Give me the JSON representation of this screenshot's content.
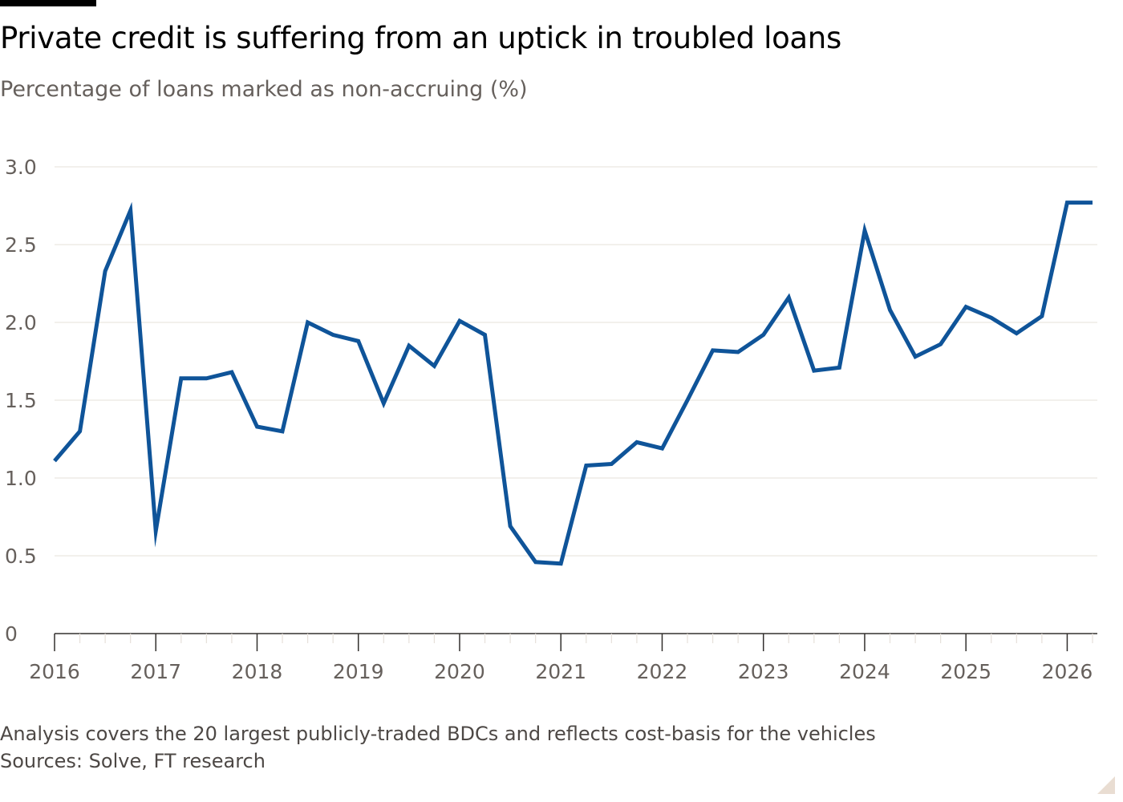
{
  "header": {
    "title": "Private credit is suffering from an uptick in troubled loans",
    "subtitle": "Percentage of loans marked as non-accruing (%)"
  },
  "footer": {
    "note": "Analysis covers the 20 largest publicly-traded BDCs and reflects cost-basis for the vehicles",
    "source": "Sources: Solve, FT research"
  },
  "colors": {
    "line": "#0f5499",
    "grid": "#e6e0da",
    "axis_text": "#66605c",
    "baseline": "#33302e"
  },
  "chart_data": {
    "type": "line",
    "title": "Private credit is suffering from an uptick in troubled loans",
    "ylabel": "Percentage of loans marked as non-accruing (%)",
    "xlabel": "",
    "xlim": [
      2016,
      2026.3
    ],
    "ylim": [
      0,
      3.0
    ],
    "yticks": [
      0,
      0.5,
      1.0,
      1.5,
      2.0,
      2.5,
      3.0
    ],
    "ytick_labels": [
      "0",
      "0.5",
      "1.0",
      "1.5",
      "2.0",
      "2.5",
      "3.0"
    ],
    "xticks": [
      2016,
      2017,
      2018,
      2019,
      2020,
      2021,
      2022,
      2023,
      2024,
      2025,
      2026
    ],
    "xtick_labels": [
      "2016",
      "2017",
      "2018",
      "2019",
      "2020",
      "2021",
      "2022",
      "2023",
      "2024",
      "2025",
      "2026"
    ],
    "grid": true,
    "legend": "none",
    "series": [
      {
        "x": [
          2016.0,
          2016.25,
          2016.5,
          2016.75,
          2017.0,
          2017.25,
          2017.5,
          2017.75,
          2018.0,
          2018.25,
          2018.5,
          2018.75,
          2019.0,
          2019.25,
          2019.5,
          2019.75,
          2020.0,
          2020.25,
          2020.5,
          2020.75,
          2021.0,
          2021.25,
          2021.5,
          2021.75,
          2022.0,
          2022.25,
          2022.5,
          2022.75,
          2023.0,
          2023.25,
          2023.5,
          2023.75,
          2024.0,
          2024.25,
          2024.5,
          2024.75,
          2025.0,
          2025.25,
          2025.5,
          2025.75,
          2026.0,
          2026.25
        ],
        "values": [
          1.11,
          1.3,
          2.33,
          2.72,
          0.66,
          1.64,
          1.64,
          1.68,
          1.33,
          1.3,
          2.0,
          1.92,
          1.88,
          1.48,
          1.85,
          1.72,
          2.01,
          1.92,
          0.69,
          0.46,
          0.45,
          1.08,
          1.09,
          1.23,
          1.19,
          1.5,
          1.82,
          1.81,
          1.92,
          2.16,
          1.69,
          1.71,
          2.59,
          2.08,
          1.78,
          1.86,
          2.1,
          2.03,
          1.93,
          2.04,
          2.77,
          2.77
        ]
      }
    ]
  }
}
